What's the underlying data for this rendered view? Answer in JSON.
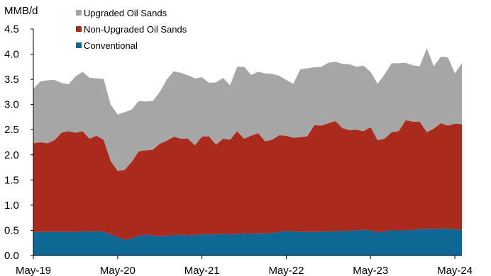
{
  "chart_data": {
    "type": "area",
    "stacked": true,
    "title": "",
    "xlabel": "",
    "ylabel": "MMB/d",
    "ylim": [
      0,
      4.5
    ],
    "yticks": [
      "0.0",
      "0.5",
      "1.0",
      "1.5",
      "2.0",
      "2.5",
      "3.0",
      "3.5",
      "4.0",
      "4.5"
    ],
    "x_range": [
      "2019-05",
      "2024-06"
    ],
    "xticks": [
      {
        "label": "May-19",
        "month": "2019-05"
      },
      {
        "label": "May-20",
        "month": "2020-05"
      },
      {
        "label": "May-21",
        "month": "2021-05"
      },
      {
        "label": "May-22",
        "month": "2022-05"
      },
      {
        "label": "May-23",
        "month": "2023-05"
      },
      {
        "label": "May-24",
        "month": "2024-05"
      }
    ],
    "grid": false,
    "legend_position": "top-left",
    "x": [
      "2019-05",
      "2019-06",
      "2019-07",
      "2019-08",
      "2019-09",
      "2019-10",
      "2019-11",
      "2019-12",
      "2020-01",
      "2020-02",
      "2020-03",
      "2020-04",
      "2020-05",
      "2020-06",
      "2020-07",
      "2020-08",
      "2020-09",
      "2020-10",
      "2020-11",
      "2020-12",
      "2021-01",
      "2021-02",
      "2021-03",
      "2021-04",
      "2021-05",
      "2021-06",
      "2021-07",
      "2021-08",
      "2021-09",
      "2021-10",
      "2021-11",
      "2021-12",
      "2022-01",
      "2022-02",
      "2022-03",
      "2022-04",
      "2022-05",
      "2022-06",
      "2022-07",
      "2022-08",
      "2022-09",
      "2022-10",
      "2022-11",
      "2022-12",
      "2023-01",
      "2023-02",
      "2023-03",
      "2023-04",
      "2023-05",
      "2023-06",
      "2023-07",
      "2023-08",
      "2023-09",
      "2023-10",
      "2023-11",
      "2023-12",
      "2024-01",
      "2024-02",
      "2024-03",
      "2024-04",
      "2024-05",
      "2024-06"
    ],
    "series": [
      {
        "name": "Conventional",
        "color": "#0f6796",
        "values": [
          0.46,
          0.47,
          0.47,
          0.47,
          0.47,
          0.47,
          0.47,
          0.48,
          0.47,
          0.48,
          0.47,
          0.42,
          0.37,
          0.31,
          0.34,
          0.39,
          0.41,
          0.4,
          0.38,
          0.4,
          0.4,
          0.41,
          0.4,
          0.41,
          0.42,
          0.42,
          0.42,
          0.43,
          0.42,
          0.43,
          0.44,
          0.43,
          0.44,
          0.44,
          0.45,
          0.47,
          0.49,
          0.48,
          0.47,
          0.47,
          0.47,
          0.47,
          0.48,
          0.48,
          0.49,
          0.49,
          0.5,
          0.51,
          0.5,
          0.46,
          0.48,
          0.5,
          0.5,
          0.5,
          0.51,
          0.52,
          0.53,
          0.52,
          0.53,
          0.53,
          0.52,
          0.51
        ]
      },
      {
        "name": "Non-Upgraded Oil Sands",
        "color": "#aa2b1e",
        "values": [
          1.77,
          1.78,
          1.76,
          1.82,
          1.97,
          2.0,
          1.97,
          1.99,
          1.85,
          1.9,
          1.83,
          1.46,
          1.31,
          1.39,
          1.52,
          1.68,
          1.68,
          1.7,
          1.84,
          1.88,
          1.96,
          1.91,
          1.92,
          1.78,
          1.94,
          1.95,
          1.78,
          1.89,
          1.88,
          2.04,
          1.88,
          1.95,
          1.99,
          1.83,
          1.85,
          1.92,
          1.89,
          1.86,
          1.88,
          1.9,
          2.12,
          2.11,
          2.15,
          2.19,
          2.04,
          2.0,
          2.0,
          1.96,
          2.05,
          1.83,
          1.84,
          1.95,
          1.97,
          2.19,
          2.15,
          2.14,
          1.92,
          2.0,
          2.1,
          2.05,
          2.1,
          2.1
        ]
      },
      {
        "name": "Upgraded Oil Sands",
        "color": "#a6a6a6",
        "values": [
          1.08,
          1.21,
          1.25,
          1.2,
          0.99,
          0.93,
          1.12,
          1.18,
          1.21,
          1.14,
          1.21,
          1.12,
          1.12,
          1.15,
          1.04,
          1.0,
          0.97,
          0.97,
          1.03,
          1.22,
          1.3,
          1.31,
          1.26,
          1.33,
          1.18,
          1.06,
          1.24,
          1.21,
          1.08,
          1.28,
          1.43,
          1.21,
          1.22,
          1.35,
          1.31,
          1.18,
          1.11,
          1.07,
          1.35,
          1.35,
          1.15,
          1.17,
          1.2,
          1.18,
          1.28,
          1.31,
          1.25,
          1.3,
          1.1,
          1.12,
          1.28,
          1.37,
          1.35,
          1.14,
          1.12,
          1.1,
          1.67,
          1.24,
          1.32,
          1.36,
          1.0,
          1.21
        ]
      }
    ],
    "legend": [
      {
        "label": "Upgraded Oil Sands",
        "color": "#a6a6a6"
      },
      {
        "label": "Non-Upgraded Oil Sands",
        "color": "#aa2b1e"
      },
      {
        "label": "Conventional",
        "color": "#0f6796"
      }
    ]
  }
}
